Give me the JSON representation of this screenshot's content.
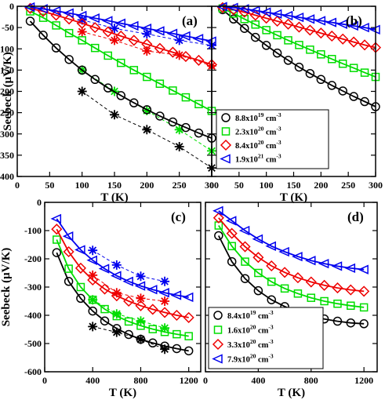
{
  "colors": {
    "black": "#000000",
    "green": "#00dd00",
    "red": "#ee0000",
    "blue": "#0000ee"
  },
  "marker_shapes": [
    "circle",
    "square",
    "diamond",
    "triangle-left"
  ],
  "chart_data": [
    {
      "type": "line",
      "panel_label": "(a)",
      "xlabel": "T (K)",
      "ylabel": "Seebeck (μV/K)",
      "xlim": [
        0,
        300
      ],
      "ylim": [
        -400,
        0
      ],
      "xticks": [
        0,
        50,
        100,
        150,
        200,
        250,
        300
      ],
      "yticks": [
        0,
        -50,
        -100,
        -150,
        -200,
        -250,
        -300,
        -350,
        -400
      ],
      "legend_position": "bottom-right",
      "series": [
        {
          "name": "8.8x10^19 cm^-3",
          "legend_base": "8.8x10",
          "legend_sup": "19",
          "legend_unit": "cm",
          "legend_unit_sup": "-3",
          "x": [
            20,
            40,
            60,
            80,
            100,
            120,
            140,
            160,
            180,
            200,
            220,
            240,
            260,
            280,
            300
          ],
          "y": [
            -35,
            -68,
            -98,
            -125,
            -150,
            -172,
            -192,
            -210,
            -227,
            -243,
            -258,
            -272,
            -285,
            -298,
            -310
          ]
        },
        {
          "name": "2.3x10^20 cm^-3",
          "legend_base": "2.3x10",
          "legend_sup": "20",
          "legend_unit": "cm",
          "legend_unit_sup": "-3",
          "x": [
            20,
            40,
            60,
            80,
            100,
            120,
            140,
            160,
            180,
            200,
            220,
            240,
            260,
            280,
            300
          ],
          "y": [
            -12,
            -27,
            -45,
            -63,
            -80,
            -98,
            -116,
            -133,
            -150,
            -166,
            -182,
            -198,
            -214,
            -230,
            -246
          ]
        },
        {
          "name": "8.4x10^20 cm^-3",
          "legend_base": "8.4x10",
          "legend_sup": "20",
          "legend_unit": "cm",
          "legend_unit_sup": "-3",
          "x": [
            20,
            40,
            60,
            80,
            100,
            120,
            140,
            160,
            180,
            200,
            220,
            240,
            260,
            280,
            300
          ],
          "y": [
            -5,
            -12,
            -21,
            -30,
            -40,
            -50,
            -60,
            -70,
            -80,
            -89,
            -99,
            -108,
            -118,
            -127,
            -137
          ]
        },
        {
          "name": "1.9x10^21 cm^-3",
          "legend_base": "1.9x10",
          "legend_sup": "21",
          "legend_unit": "cm",
          "legend_unit_sup": "-3",
          "x": [
            20,
            40,
            60,
            80,
            100,
            120,
            140,
            160,
            180,
            200,
            220,
            240,
            260,
            280,
            300
          ],
          "y": [
            -2,
            -6,
            -11,
            -16,
            -22,
            -28,
            -34,
            -40,
            -46,
            -52,
            -58,
            -64,
            -70,
            -76,
            -82
          ]
        }
      ],
      "experimental": [
        {
          "x": [
            100,
            150,
            200,
            250,
            300
          ],
          "y": [
            -200,
            -255,
            -290,
            -330,
            -380
          ]
        },
        {
          "x": [
            100,
            150,
            200,
            250,
            300
          ],
          "y": [
            -150,
            -200,
            -245,
            -290,
            -340
          ]
        },
        {
          "x": [
            100,
            150,
            200,
            250,
            300
          ],
          "y": [
            -60,
            -80,
            -105,
            -115,
            -140
          ]
        },
        {
          "x": [
            100,
            150,
            200,
            250,
            300
          ],
          "y": [
            -32,
            -52,
            -65,
            -80,
            -92
          ]
        }
      ]
    },
    {
      "type": "line",
      "panel_label": "(b)",
      "xlabel": "T (K)",
      "ylabel": "",
      "xlim": [
        0,
        300
      ],
      "ylim": [
        -400,
        0
      ],
      "xticks": [
        0,
        50,
        100,
        150,
        200,
        250,
        300
      ],
      "yticks": [
        0,
        -50,
        -100,
        -150,
        -200,
        -250,
        -300,
        -350,
        -400
      ],
      "series": [
        {
          "x": [
            20,
            40,
            60,
            80,
            100,
            120,
            140,
            160,
            180,
            200,
            220,
            240,
            260,
            280,
            300
          ],
          "y": [
            -8,
            -30,
            -52,
            -73,
            -92,
            -110,
            -127,
            -143,
            -158,
            -172,
            -186,
            -199,
            -212,
            -224,
            -236
          ]
        },
        {
          "x": [
            20,
            40,
            60,
            80,
            100,
            120,
            140,
            160,
            180,
            200,
            220,
            240,
            260,
            280,
            300
          ],
          "y": [
            -5,
            -17,
            -30,
            -43,
            -56,
            -68,
            -80,
            -91,
            -102,
            -113,
            -124,
            -135,
            -145,
            -156,
            -166
          ]
        },
        {
          "x": [
            20,
            40,
            60,
            80,
            100,
            120,
            140,
            160,
            180,
            200,
            220,
            240,
            260,
            280,
            300
          ],
          "y": [
            -3,
            -8,
            -14,
            -21,
            -28,
            -35,
            -42,
            -49,
            -56,
            -63,
            -70,
            -77,
            -84,
            -91,
            -97
          ]
        },
        {
          "x": [
            20,
            40,
            60,
            80,
            100,
            120,
            140,
            160,
            180,
            200,
            220,
            240,
            260,
            280,
            300
          ],
          "y": [
            -1,
            -3,
            -6,
            -10,
            -14,
            -18,
            -22,
            -26,
            -30,
            -34,
            -38,
            -42,
            -46,
            -50,
            -55
          ]
        }
      ]
    },
    {
      "type": "line",
      "panel_label": "(c)",
      "xlabel": "T (K)",
      "ylabel": "Seebeck (μV/K)",
      "xlim": [
        0,
        1300
      ],
      "ylim": [
        -600,
        0
      ],
      "xticks": [
        0,
        400,
        800,
        1200
      ],
      "yticks": [
        0,
        -100,
        -200,
        -300,
        -400,
        -500,
        -600
      ],
      "series": [
        {
          "x": [
            100,
            200,
            300,
            400,
            500,
            600,
            700,
            800,
            900,
            1000,
            1100,
            1200
          ],
          "y": [
            -178,
            -280,
            -340,
            -385,
            -420,
            -447,
            -468,
            -485,
            -498,
            -509,
            -518,
            -526
          ]
        },
        {
          "x": [
            100,
            200,
            300,
            400,
            500,
            600,
            700,
            800,
            900,
            1000,
            1100,
            1200
          ],
          "y": [
            -132,
            -235,
            -300,
            -345,
            -378,
            -403,
            -422,
            -437,
            -449,
            -459,
            -467,
            -474
          ]
        },
        {
          "x": [
            100,
            200,
            300,
            400,
            500,
            600,
            700,
            800,
            900,
            1000,
            1100,
            1200
          ],
          "y": [
            -95,
            -175,
            -233,
            -275,
            -307,
            -331,
            -350,
            -366,
            -379,
            -390,
            -400,
            -408
          ]
        },
        {
          "x": [
            100,
            200,
            300,
            400,
            500,
            600,
            700,
            800,
            900,
            1000,
            1100,
            1200
          ],
          "y": [
            -58,
            -120,
            -168,
            -205,
            -235,
            -260,
            -280,
            -296,
            -309,
            -320,
            -329,
            -336
          ]
        }
      ],
      "experimental": [
        {
          "x": [
            400,
            600,
            800,
            1000
          ],
          "y": [
            -440,
            -460,
            -485,
            -520
          ]
        },
        {
          "x": [
            400,
            600,
            800,
            1000
          ],
          "y": [
            -345,
            -395,
            -420,
            -445
          ]
        },
        {
          "x": [
            400,
            600,
            800,
            1000
          ],
          "y": [
            -258,
            -320,
            -340,
            -350
          ]
        },
        {
          "x": [
            400,
            600,
            800,
            1000
          ],
          "y": [
            -170,
            -222,
            -262,
            -280
          ]
        }
      ]
    },
    {
      "type": "line",
      "panel_label": "(d)",
      "xlabel": "T (K)",
      "ylabel": "",
      "xlim": [
        0,
        1300
      ],
      "ylim": [
        -600,
        0
      ],
      "xticks": [
        0,
        400,
        800,
        1200
      ],
      "yticks": [
        0,
        -100,
        -200,
        -300,
        -400,
        -500,
        -600
      ],
      "legend_position": "bottom-left",
      "series": [
        {
          "name": "8.4x10^19 cm^-3",
          "legend_base": "8.4x10",
          "legend_sup": "19",
          "legend_unit": "cm",
          "legend_unit_sup": "-3",
          "x": [
            100,
            200,
            300,
            400,
            500,
            600,
            700,
            800,
            900,
            1000,
            1100,
            1200
          ],
          "y": [
            -118,
            -210,
            -270,
            -313,
            -345,
            -369,
            -388,
            -402,
            -413,
            -421,
            -427,
            -430
          ]
        },
        {
          "name": "1.6x10^20 cm^-3",
          "legend_base": "1.6x10",
          "legend_sup": "20",
          "legend_unit": "cm",
          "legend_unit_sup": "-3",
          "x": [
            100,
            200,
            300,
            400,
            500,
            600,
            700,
            800,
            900,
            1000,
            1100,
            1200
          ],
          "y": [
            -82,
            -155,
            -210,
            -250,
            -281,
            -305,
            -323,
            -338,
            -350,
            -359,
            -366,
            -372
          ]
        },
        {
          "name": "3.3x10^20 cm^-3",
          "legend_base": "3.3x10",
          "legend_sup": "20",
          "legend_unit": "cm",
          "legend_unit_sup": "-3",
          "x": [
            100,
            200,
            300,
            400,
            500,
            600,
            700,
            800,
            900,
            1000,
            1100,
            1200
          ],
          "y": [
            -55,
            -110,
            -157,
            -195,
            -225,
            -248,
            -267,
            -282,
            -294,
            -303,
            -310,
            -315
          ]
        },
        {
          "name": "7.9x10^20 cm^-3",
          "legend_base": "7.9x10",
          "legend_sup": "20",
          "legend_unit": "cm",
          "legend_unit_sup": "-3",
          "x": [
            100,
            200,
            300,
            400,
            500,
            600,
            700,
            800,
            900,
            1000,
            1100,
            1200
          ],
          "y": [
            -30,
            -65,
            -100,
            -130,
            -155,
            -175,
            -192,
            -206,
            -217,
            -226,
            -233,
            -238
          ]
        }
      ]
    }
  ]
}
